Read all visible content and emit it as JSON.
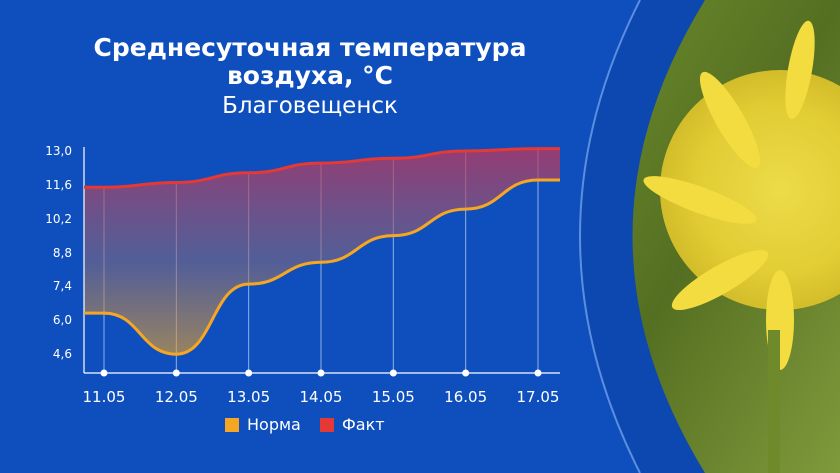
{
  "title": {
    "line1": "Среднесуточная температура",
    "line2": "воздуха, °C",
    "subtitle": "Благовещенск"
  },
  "colors": {
    "background": "#0d47b0",
    "norm": "#f5a623",
    "fact": "#e53935",
    "axis": "#ffffff"
  },
  "legend": [
    {
      "label": "Норма",
      "color": "#f5a623"
    },
    {
      "label": "Факт",
      "color": "#e53935"
    }
  ],
  "chart_data": {
    "type": "line",
    "categories": [
      "11.05",
      "12.05",
      "13.05",
      "14.05",
      "15.05",
      "16.05",
      "17.05"
    ],
    "series": [
      {
        "name": "Норма",
        "color": "#f5a623",
        "values": [
          6.3,
          4.6,
          7.5,
          8.4,
          9.5,
          10.6,
          11.8
        ]
      },
      {
        "name": "Факт",
        "color": "#e53935",
        "values": [
          11.5,
          11.7,
          12.1,
          12.5,
          12.7,
          13.0,
          13.1
        ]
      }
    ],
    "yticks": [
      "13,0",
      "11,6",
      "10,2",
      "8,8",
      "7,4",
      "6,0",
      "4,6"
    ],
    "ylim": [
      3.7,
      13.0
    ],
    "grid": "vertical",
    "legend_position": "bottom",
    "fill": "gradient-between-series"
  }
}
